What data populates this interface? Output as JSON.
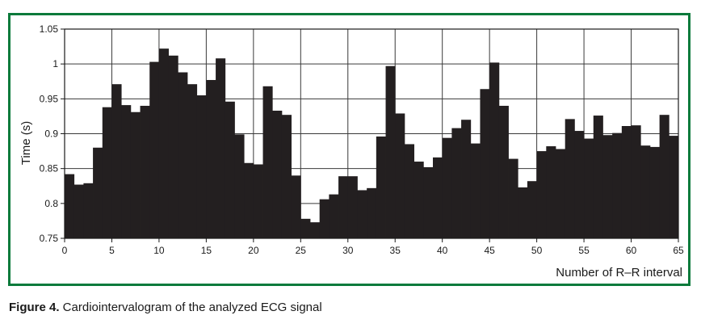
{
  "chart_data": {
    "type": "bar",
    "title": "",
    "xlabel": "Number of R–R interval",
    "ylabel": "Time (s)",
    "xlim": [
      0,
      65
    ],
    "ylim": [
      0.75,
      1.05
    ],
    "x_ticks": [
      0,
      5,
      10,
      15,
      20,
      25,
      30,
      35,
      40,
      45,
      50,
      55,
      60,
      65
    ],
    "y_ticks": [
      0.75,
      0.8,
      0.85,
      0.9,
      0.95,
      1,
      1.05
    ],
    "x_tick_labels": [
      "0",
      "5",
      "10",
      "15",
      "20",
      "25",
      "30",
      "35",
      "40",
      "45",
      "50",
      "55",
      "60",
      "65"
    ],
    "y_tick_labels": [
      "0.75",
      "0.8",
      "0.85",
      "0.9",
      "0.95",
      "1",
      "1.05"
    ],
    "grid": true,
    "bar_color": "#231f20",
    "values": [
      0.842,
      0.827,
      0.829,
      0.88,
      0.938,
      0.971,
      0.941,
      0.931,
      0.94,
      1.003,
      1.022,
      1.012,
      0.988,
      0.971,
      0.955,
      0.977,
      1.008,
      0.946,
      0.899,
      0.858,
      0.856,
      0.968,
      0.933,
      0.927,
      0.84,
      0.778,
      0.773,
      0.806,
      0.813,
      0.839,
      0.839,
      0.819,
      0.822,
      0.896,
      0.997,
      0.929,
      0.885,
      0.86,
      0.852,
      0.866,
      0.894,
      0.908,
      0.92,
      0.886,
      0.964,
      1.002,
      0.94,
      0.864,
      0.823,
      0.832,
      0.875,
      0.882,
      0.878,
      0.921,
      0.904,
      0.893,
      0.926,
      0.898,
      0.901,
      0.911,
      0.912,
      0.883,
      0.881,
      0.927,
      0.897
    ]
  },
  "caption": {
    "label": "Figure 4.",
    "text": " Cardiointervalogram of the analyzed ECG signal"
  },
  "colors": {
    "frame": "#0b7a3b",
    "grid": "#3a3a3a"
  }
}
